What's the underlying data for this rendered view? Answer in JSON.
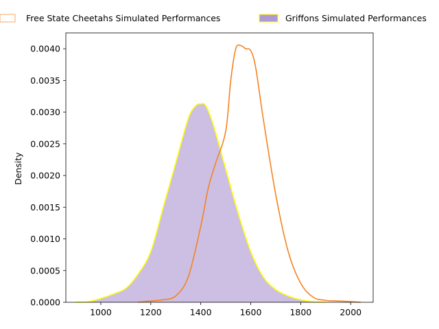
{
  "chart_data": {
    "type": "area",
    "title": "",
    "xlabel": "",
    "ylabel": "Density",
    "xlim": [
      860,
      2090
    ],
    "ylim": [
      0,
      0.00425
    ],
    "x_ticks": [
      1000,
      1200,
      1400,
      1600,
      1800,
      2000
    ],
    "y_ticks": [
      0,
      0.0005,
      0.001,
      0.0015,
      0.002,
      0.0025,
      0.003,
      0.0035,
      0.004
    ],
    "x_tick_labels": [
      "1000",
      "1200",
      "1400",
      "1600",
      "1800",
      "2000"
    ],
    "y_tick_labels": [
      "0.0000",
      "0.0005",
      "0.0010",
      "0.0015",
      "0.0020",
      "0.0025",
      "0.0030",
      "0.0035",
      "0.0040"
    ],
    "grid": false,
    "legend_position": "top",
    "series": [
      {
        "name": "Free State Cheetahs Simulated Performances",
        "style": "line",
        "color": "#f5821f",
        "x": [
          1150,
          1200,
          1250,
          1300,
          1350,
          1400,
          1430,
          1460,
          1500,
          1520,
          1540,
          1560,
          1580,
          1600,
          1620,
          1650,
          1700,
          1750,
          1800,
          1850,
          1900,
          1950,
          2000,
          2040
        ],
        "y": [
          0,
          2e-05,
          4e-05,
          0.0001,
          0.0004,
          0.0012,
          0.0018,
          0.0022,
          0.0027,
          0.0035,
          0.004,
          0.00405,
          0.004,
          0.00397,
          0.0037,
          0.0029,
          0.0017,
          0.0008,
          0.0003,
          8e-05,
          3e-05,
          2e-05,
          1e-05,
          0
        ]
      },
      {
        "name": "Griffons Simulated Performances",
        "style": "filled",
        "color": "#9b7fc8",
        "edge_color": "#ffff00",
        "x": [
          900,
          950,
          1000,
          1050,
          1100,
          1150,
          1200,
          1250,
          1300,
          1350,
          1380,
          1400,
          1420,
          1450,
          1500,
          1550,
          1600,
          1650,
          1700,
          1750,
          1800,
          1850,
          1900
        ],
        "y": [
          0,
          1e-05,
          6e-05,
          0.00013,
          0.00022,
          0.00045,
          0.0008,
          0.0015,
          0.0022,
          0.0029,
          0.0031,
          0.00313,
          0.0031,
          0.0028,
          0.0021,
          0.0014,
          0.0008,
          0.0004,
          0.0002,
          0.0001,
          4e-05,
          1e-05,
          0
        ]
      }
    ]
  }
}
